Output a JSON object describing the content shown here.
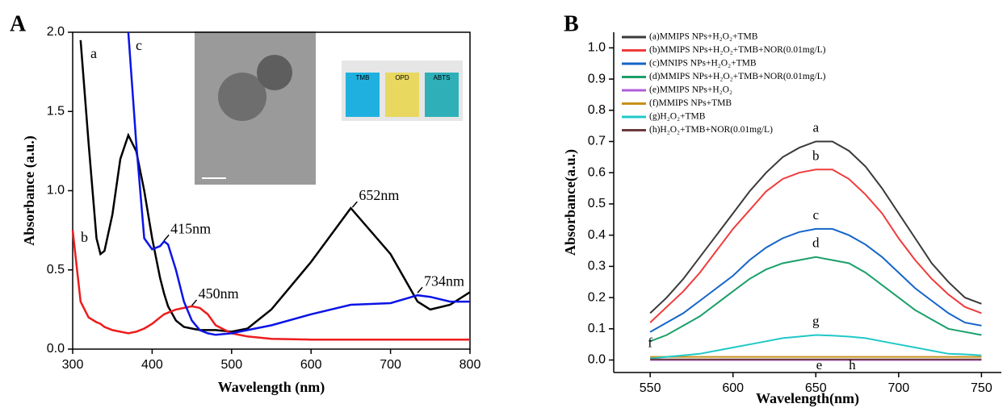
{
  "chart_data": [
    {
      "type": "line",
      "panel": "A",
      "xlabel": "Wavelength (nm)",
      "ylabel": "Absorbance (a.u.)",
      "xlim": [
        300,
        800
      ],
      "xticks": [
        300,
        400,
        500,
        600,
        700,
        800
      ],
      "ylim": [
        0,
        2
      ],
      "yticks": [
        {
          "value": 0,
          "label": "0.0"
        },
        {
          "value": 0.5,
          "label": "0.5"
        },
        {
          "value": 1,
          "label": "1.0"
        },
        {
          "value": 1.5,
          "label": "1.5"
        },
        {
          "value": 2,
          "label": "2.0"
        }
      ],
      "x": [
        300,
        310,
        320,
        330,
        335,
        340,
        350,
        360,
        370,
        380,
        390,
        400,
        410,
        415,
        420,
        430,
        440,
        450,
        460,
        470,
        480,
        500,
        520,
        550,
        600,
        650,
        700,
        734,
        750,
        775,
        800
      ],
      "series": [
        {
          "name": "a",
          "color": "#000000",
          "values": [
            null,
            1.95,
            1.3,
            0.7,
            0.6,
            0.62,
            0.85,
            1.2,
            1.35,
            1.25,
            1.0,
            0.7,
            0.45,
            0.35,
            0.27,
            0.18,
            0.14,
            0.13,
            0.12,
            0.12,
            0.12,
            0.11,
            0.13,
            0.25,
            0.55,
            0.89,
            0.6,
            0.3,
            0.25,
            0.28,
            0.36
          ]
        },
        {
          "name": "b",
          "color": "#ee1c1c",
          "values": [
            0.75,
            0.3,
            0.2,
            0.17,
            0.16,
            0.14,
            0.12,
            0.11,
            0.1,
            0.11,
            0.13,
            0.16,
            0.2,
            0.22,
            0.23,
            0.25,
            0.26,
            0.27,
            0.26,
            0.22,
            0.15,
            0.1,
            0.08,
            0.065,
            0.06,
            0.06,
            0.06,
            0.06,
            0.06,
            0.06,
            0.06
          ]
        },
        {
          "name": "c",
          "color": "#0a14e6",
          "values": [
            null,
            null,
            null,
            null,
            null,
            null,
            null,
            null,
            2.0,
            1.3,
            0.7,
            0.63,
            0.65,
            0.68,
            0.66,
            0.5,
            0.3,
            0.18,
            0.12,
            0.1,
            0.09,
            0.1,
            0.12,
            0.15,
            0.22,
            0.28,
            0.29,
            0.34,
            0.33,
            0.3,
            0.3
          ]
        }
      ],
      "annotations": [
        "652nm",
        "415nm",
        "450nm",
        "734nm"
      ],
      "inset_labels": [
        "TMB",
        "OPD",
        "ABTS"
      ]
    },
    {
      "type": "line",
      "panel": "B",
      "xlabel": "Wavelength(nm)",
      "ylabel": "Absorbance(a.u.)",
      "xlim": [
        528,
        762
      ],
      "xticks": [
        550,
        600,
        650,
        700,
        750
      ],
      "ylim": [
        -0.04,
        1.05
      ],
      "yticks": [
        {
          "value": 0,
          "label": "0.0"
        },
        {
          "value": 0.1,
          "label": "0.1"
        },
        {
          "value": 0.2,
          "label": "0.2"
        },
        {
          "value": 0.3,
          "label": "0.3"
        },
        {
          "value": 0.4,
          "label": "0.4"
        },
        {
          "value": 0.5,
          "label": "0.5"
        },
        {
          "value": 0.6,
          "label": "0.6"
        },
        {
          "value": 0.7,
          "label": "0.7"
        },
        {
          "value": 0.8,
          "label": "0.8"
        },
        {
          "value": 0.9,
          "label": "0.9"
        },
        {
          "value": 1,
          "label": "1.0"
        }
      ],
      "x": [
        550,
        560,
        570,
        580,
        590,
        600,
        610,
        620,
        630,
        640,
        650,
        660,
        670,
        680,
        690,
        700,
        710,
        720,
        730,
        740,
        750
      ],
      "series": [
        {
          "name": "(a)MMIPS NPs+H₂O₂+TMB",
          "label": "a",
          "color": "#3a3a3a",
          "values": [
            0.15,
            0.2,
            0.26,
            0.33,
            0.4,
            0.47,
            0.54,
            0.6,
            0.65,
            0.68,
            0.7,
            0.7,
            0.67,
            0.62,
            0.55,
            0.47,
            0.39,
            0.31,
            0.25,
            0.2,
            0.18
          ]
        },
        {
          "name": "(b)MMIPS NPs+H₂O₂+TMB+NOR(0.01mg/L)",
          "label": "b",
          "color": "#f03c3c",
          "values": [
            0.12,
            0.17,
            0.22,
            0.28,
            0.35,
            0.42,
            0.48,
            0.54,
            0.58,
            0.6,
            0.61,
            0.61,
            0.58,
            0.53,
            0.47,
            0.39,
            0.32,
            0.26,
            0.21,
            0.17,
            0.15
          ]
        },
        {
          "name": "(c)MNIPS NPs+H₂O₂+TMB",
          "label": "c",
          "color": "#1565c8",
          "values": [
            0.09,
            0.12,
            0.15,
            0.19,
            0.23,
            0.27,
            0.32,
            0.36,
            0.39,
            0.41,
            0.42,
            0.42,
            0.4,
            0.37,
            0.33,
            0.28,
            0.23,
            0.19,
            0.15,
            0.12,
            0.11
          ]
        },
        {
          "name": "(d)MMIPS NPs+H₂O₂+TMB+NOR(0.01mg/L)",
          "label": "d",
          "color": "#1aa06a",
          "values": [
            0.06,
            0.08,
            0.11,
            0.14,
            0.18,
            0.22,
            0.26,
            0.29,
            0.31,
            0.32,
            0.33,
            0.32,
            0.31,
            0.28,
            0.24,
            0.2,
            0.16,
            0.13,
            0.1,
            0.09,
            0.08
          ]
        },
        {
          "name": "(e)MMIPS NPs+H₂O₂",
          "label": "e",
          "color": "#b05cd8",
          "values": [
            0,
            0,
            0,
            0,
            0,
            0,
            0,
            0,
            0,
            0,
            0,
            0,
            0,
            0,
            0,
            0,
            0,
            0,
            0,
            0,
            0
          ]
        },
        {
          "name": "(f)MMIPS NPs+TMB",
          "label": "f",
          "color": "#c8901a",
          "values": [
            0.01,
            0.01,
            0.01,
            0.01,
            0.01,
            0.01,
            0.01,
            0.01,
            0.01,
            0.01,
            0.01,
            0.01,
            0.01,
            0.01,
            0.01,
            0.01,
            0.01,
            0.01,
            0.01,
            0.01,
            0.01
          ]
        },
        {
          "name": "(g)H₂O₂+TMB",
          "label": "g",
          "color": "#20c8c8",
          "values": [
            0.005,
            0.01,
            0.015,
            0.02,
            0.03,
            0.04,
            0.05,
            0.06,
            0.07,
            0.075,
            0.08,
            0.078,
            0.075,
            0.07,
            0.06,
            0.05,
            0.04,
            0.03,
            0.02,
            0.018,
            0.015
          ]
        },
        {
          "name": "(h)H₂O₂+TMB+NOR(0.01mg/L)",
          "label": "h",
          "color": "#6b3a3a",
          "values": [
            0.002,
            0.002,
            0.002,
            0.002,
            0.002,
            0.002,
            0.002,
            0.002,
            0.002,
            0.002,
            0.002,
            0.002,
            0.002,
            0.002,
            0.002,
            0.002,
            0.002,
            0.002,
            0.002,
            0.002,
            0.002
          ]
        }
      ]
    }
  ]
}
